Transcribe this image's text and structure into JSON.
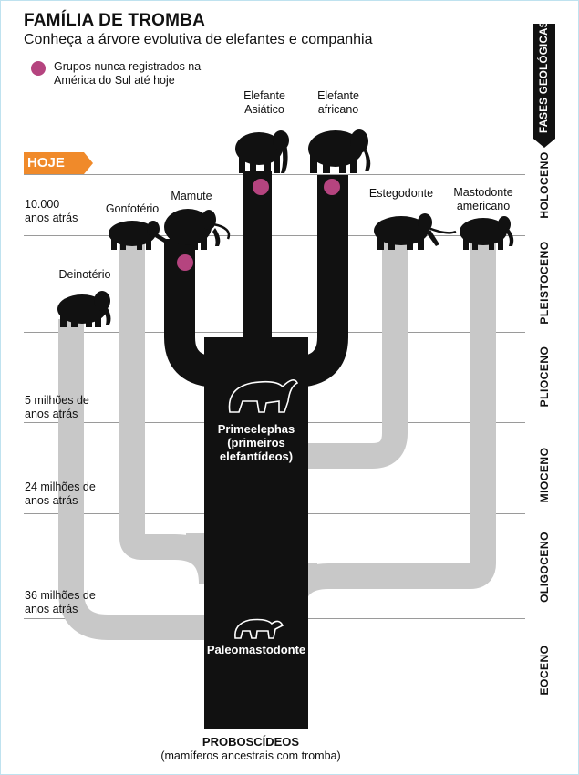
{
  "header": {
    "title": "FAMÍLIA DE TROMBA",
    "subtitle": "Conheça a árvore evolutiva de elefantes e companhia"
  },
  "legend": {
    "line1": "Grupos nunca registrados na",
    "line2": "América do Sul até hoje",
    "color": "#b5447f"
  },
  "timeline": {
    "now": "HOJE",
    "now_color": "#f08a2a",
    "marks": [
      {
        "line1": "10.000",
        "line2": "anos atrás"
      },
      {
        "line1": "5 milhões de",
        "line2": "anos atrás"
      },
      {
        "line1": "24 milhões de",
        "line2": "anos atrás"
      },
      {
        "line1": "36 milhões de",
        "line2": "anos atrás"
      }
    ]
  },
  "phases": {
    "heading": "FASES GEOLÓGICAS",
    "items": [
      "HOLOCENO",
      "PLEISTOCENO",
      "PLIOCENO",
      "MIOCENO",
      "OLIGOCENO",
      "EOCENO"
    ]
  },
  "species": {
    "asiatico": {
      "line1": "Elefante",
      "line2": "Asiático"
    },
    "africano": {
      "line1": "Elefante",
      "line2": "africano"
    },
    "mamute": "Mamute",
    "gonfoterio": "Gonfotério",
    "deinoterio": "Deinotério",
    "estegodonte": "Estegodonte",
    "mastodonte": {
      "line1": "Mastodonte",
      "line2": "americano"
    }
  },
  "trunk": {
    "primeelephas": {
      "line1": "Primeelephas",
      "line2": "(primeiros",
      "line3": "elefantídeos)"
    },
    "paleomastodonte": "Paleomastodonte"
  },
  "footer": {
    "title": "PROBOSCÍDEOS",
    "subtitle": "(mamíferos ancestrais com tromba)"
  },
  "colors": {
    "black_branch": "#111111",
    "gray_branch": "#c8c8c8"
  }
}
